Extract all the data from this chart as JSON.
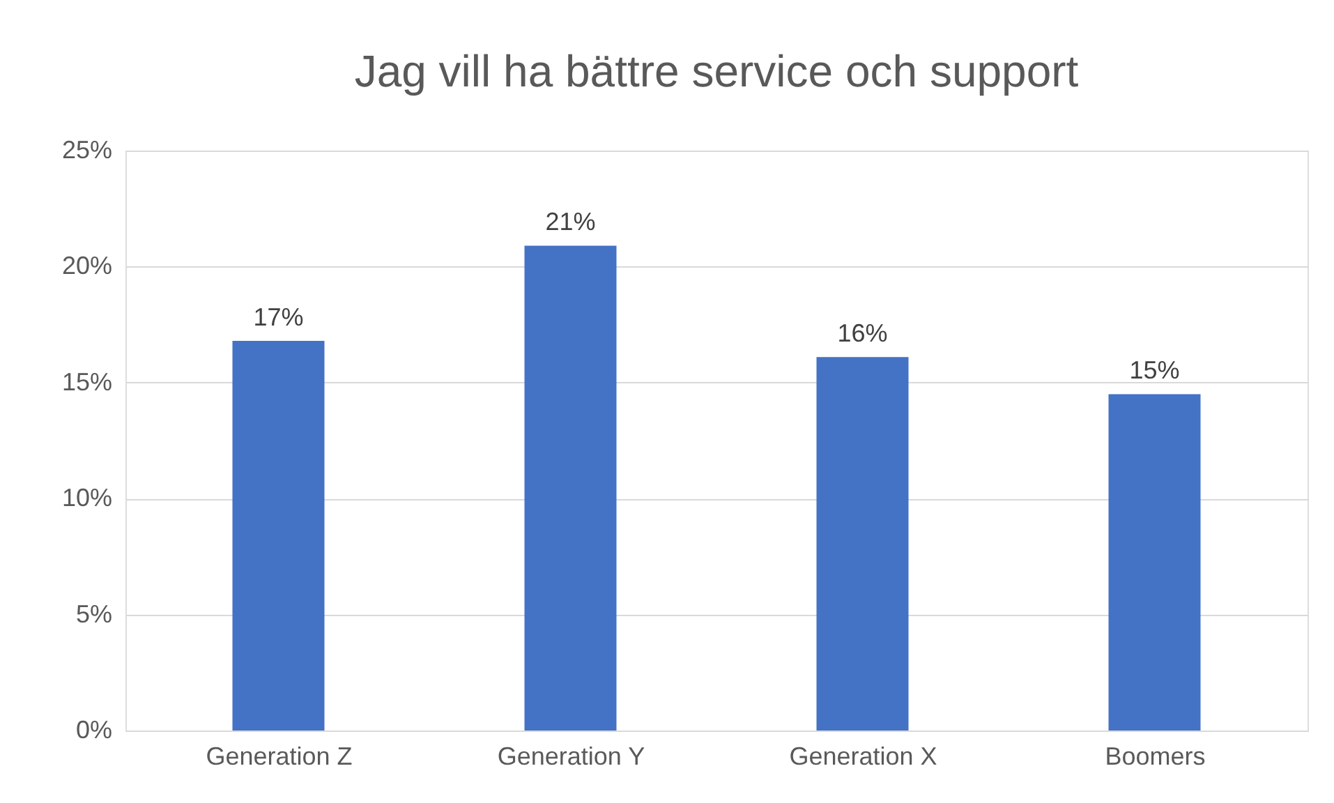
{
  "chart_data": {
    "type": "bar",
    "title": "Jag vill ha bättre service och support",
    "categories": [
      "Generation Z",
      "Generation Y",
      "Generation X",
      "Boomers"
    ],
    "values": [
      16.8,
      20.9,
      16.1,
      14.5
    ],
    "value_labels": [
      "17%",
      "21%",
      "16%",
      "15%"
    ],
    "color": "#4472c4",
    "ylim": [
      0,
      25
    ],
    "yticks": [
      {
        "value": 0,
        "label": "0%"
      },
      {
        "value": 5,
        "label": "5%"
      },
      {
        "value": 10,
        "label": "10%"
      },
      {
        "value": 15,
        "label": "15%"
      },
      {
        "value": 20,
        "label": "20%"
      },
      {
        "value": 25,
        "label": "25%"
      }
    ],
    "grid": "y"
  }
}
